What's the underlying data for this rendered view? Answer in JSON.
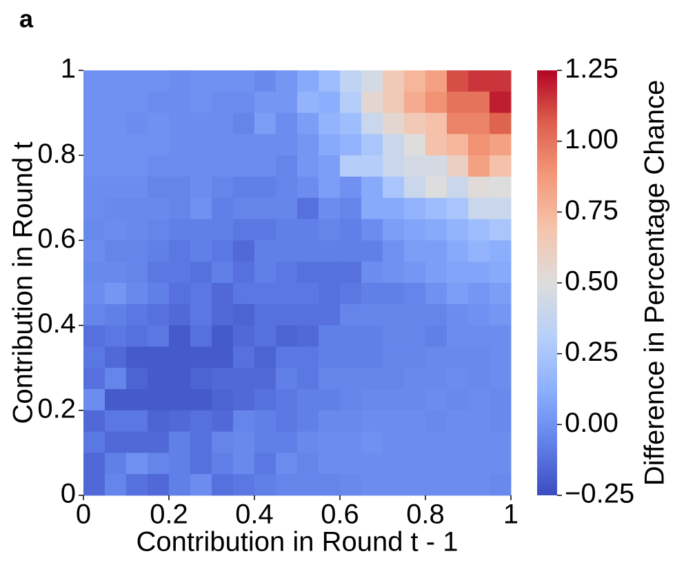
{
  "panel_label": "a",
  "chart_data": {
    "type": "heatmap",
    "xlabel": "Contribution in Round t - 1",
    "ylabel": "Contribution in Round t",
    "xlim": [
      0,
      1
    ],
    "ylim": [
      0,
      1
    ],
    "xticks": [
      0,
      0.2,
      0.4,
      0.6,
      0.8,
      1
    ],
    "yticks": [
      0,
      0.2,
      0.4,
      0.6,
      0.8,
      1
    ],
    "colormap": "coolwarm",
    "colorbar_label": "Difference in Percentage Chance",
    "clim": [
      -0.25,
      1.25
    ],
    "cticks": [
      {
        "value": -0.25,
        "label": "−0.25"
      },
      {
        "value": 0,
        "label": "0.00"
      },
      0.25,
      {
        "value": 0.5,
        "label": "0.50"
      },
      0.75,
      {
        "value": 1,
        "label": "1.00"
      },
      1.25
    ],
    "z": [
      [
        0,
        0,
        0,
        0,
        -0.02,
        0,
        0,
        0,
        -0.03,
        0.02,
        0.1,
        0.2,
        0.35,
        0.45,
        0.65,
        0.75,
        0.85,
        1.1,
        1.15,
        1.15
      ],
      [
        0,
        0,
        0,
        -0.02,
        -0.02,
        0,
        -0.02,
        -0.02,
        0.02,
        0.02,
        0.15,
        0.12,
        0.3,
        0.55,
        0.65,
        0.8,
        0.9,
        1.0,
        1.0,
        1.2
      ],
      [
        0,
        0,
        -0.02,
        0,
        -0.02,
        -0.02,
        -0.02,
        -0.05,
        0.05,
        -0.02,
        0.05,
        0.15,
        0.2,
        0.4,
        0.55,
        0.65,
        0.7,
        0.95,
        0.95,
        1.05
      ],
      [
        0,
        0,
        0,
        0,
        -0.02,
        -0.02,
        -0.02,
        -0.02,
        -0.02,
        -0.02,
        0.02,
        0.1,
        0.15,
        0.25,
        0.4,
        0.5,
        0.7,
        0.75,
        0.9,
        0.85
      ],
      [
        0,
        0,
        0,
        -0.02,
        -0.02,
        -0.02,
        -0.02,
        -0.02,
        -0.02,
        -0.05,
        0.02,
        0.05,
        0.3,
        0.3,
        0.4,
        0.45,
        0.45,
        0.6,
        0.85,
        0.7
      ],
      [
        -0.02,
        -0.02,
        -0.02,
        -0.05,
        -0.05,
        -0.02,
        -0.05,
        -0.07,
        -0.07,
        -0.05,
        -0.02,
        0.05,
        0,
        0.1,
        0.25,
        0.4,
        0.5,
        0.4,
        0.52,
        0.5
      ],
      [
        -0.02,
        -0.03,
        -0.03,
        -0.03,
        -0.05,
        0,
        -0.07,
        -0.05,
        -0.05,
        -0.05,
        -0.12,
        -0.02,
        -0.05,
        0.1,
        0.1,
        0.15,
        0.2,
        0.25,
        0.4,
        0.4
      ],
      [
        -0.03,
        -0.02,
        -0.03,
        -0.05,
        -0.07,
        -0.07,
        -0.07,
        -0.1,
        -0.1,
        -0.07,
        -0.07,
        -0.05,
        -0.07,
        -0.02,
        0.05,
        0.08,
        0.1,
        0.15,
        0.2,
        0.25
      ],
      [
        -0.02,
        -0.05,
        -0.05,
        -0.07,
        -0.1,
        -0.07,
        -0.1,
        -0.15,
        -0.07,
        -0.07,
        -0.07,
        -0.07,
        -0.07,
        -0.07,
        0,
        0.05,
        0.05,
        0.1,
        0.15,
        0.12
      ],
      [
        -0.03,
        -0.03,
        -0.05,
        -0.1,
        -0.1,
        -0.12,
        -0.07,
        -0.12,
        -0.07,
        -0.1,
        -0.12,
        -0.12,
        -0.12,
        -0.02,
        0,
        0.02,
        0.05,
        0.08,
        0.08,
        0.1
      ],
      [
        -0.02,
        0.02,
        -0.03,
        -0.07,
        -0.12,
        -0.1,
        -0.15,
        -0.1,
        -0.1,
        -0.1,
        -0.1,
        -0.12,
        -0.1,
        -0.07,
        -0.07,
        -0.05,
        0,
        0.05,
        0.02,
        0.05
      ],
      [
        -0.05,
        -0.07,
        -0.1,
        -0.12,
        -0.15,
        -0.1,
        -0.15,
        -0.17,
        -0.12,
        -0.12,
        -0.12,
        -0.12,
        -0.05,
        -0.05,
        -0.05,
        -0.05,
        -0.05,
        -0.02,
        0,
        0.02
      ],
      [
        -0.12,
        -0.1,
        -0.12,
        -0.1,
        -0.2,
        -0.12,
        -0.2,
        -0.15,
        -0.12,
        -0.17,
        -0.15,
        -0.07,
        -0.07,
        -0.07,
        -0.05,
        -0.05,
        -0.07,
        -0.02,
        -0.02,
        -0.02
      ],
      [
        -0.1,
        -0.15,
        -0.2,
        -0.2,
        -0.2,
        -0.2,
        -0.2,
        -0.12,
        -0.17,
        -0.1,
        -0.1,
        -0.07,
        -0.07,
        -0.07,
        -0.05,
        -0.05,
        -0.03,
        -0.03,
        -0.03,
        -0.02
      ],
      [
        -0.12,
        -0.05,
        -0.17,
        -0.2,
        -0.2,
        -0.17,
        -0.15,
        -0.15,
        -0.15,
        -0.07,
        -0.1,
        -0.05,
        -0.05,
        -0.05,
        -0.05,
        -0.03,
        -0.03,
        -0.02,
        -0.03,
        -0.02
      ],
      [
        -0.02,
        -0.2,
        -0.2,
        -0.2,
        -0.2,
        -0.2,
        -0.17,
        -0.15,
        -0.12,
        -0.1,
        -0.07,
        -0.07,
        -0.05,
        -0.03,
        -0.03,
        -0.03,
        -0.02,
        -0.03,
        -0.02,
        -0.03
      ],
      [
        -0.15,
        -0.1,
        -0.1,
        -0.17,
        -0.15,
        -0.12,
        -0.15,
        -0.05,
        -0.07,
        -0.1,
        -0.07,
        -0.03,
        -0.03,
        -0.02,
        -0.02,
        -0.02,
        -0.03,
        -0.02,
        -0.02,
        -0.03
      ],
      [
        -0.1,
        -0.15,
        -0.15,
        -0.15,
        -0.07,
        -0.12,
        -0.05,
        -0.03,
        -0.07,
        -0.07,
        -0.03,
        -0.02,
        -0.02,
        0,
        -0.02,
        -0.02,
        -0.02,
        -0.02,
        -0.02,
        -0.02
      ],
      [
        -0.15,
        -0.07,
        0,
        -0.05,
        -0.07,
        -0.12,
        -0.07,
        -0.03,
        -0.1,
        -0.02,
        -0.05,
        -0.02,
        -0.02,
        -0.02,
        -0.02,
        -0.02,
        -0.02,
        -0.02,
        -0.02,
        -0.02
      ],
      [
        -0.15,
        -0.05,
        -0.12,
        -0.15,
        -0.07,
        -0.02,
        -0.12,
        -0.1,
        -0.07,
        -0.05,
        -0.05,
        -0.05,
        -0.03,
        -0.02,
        -0.02,
        -0.02,
        -0.02,
        -0.02,
        -0.02,
        -0.03
      ]
    ]
  }
}
